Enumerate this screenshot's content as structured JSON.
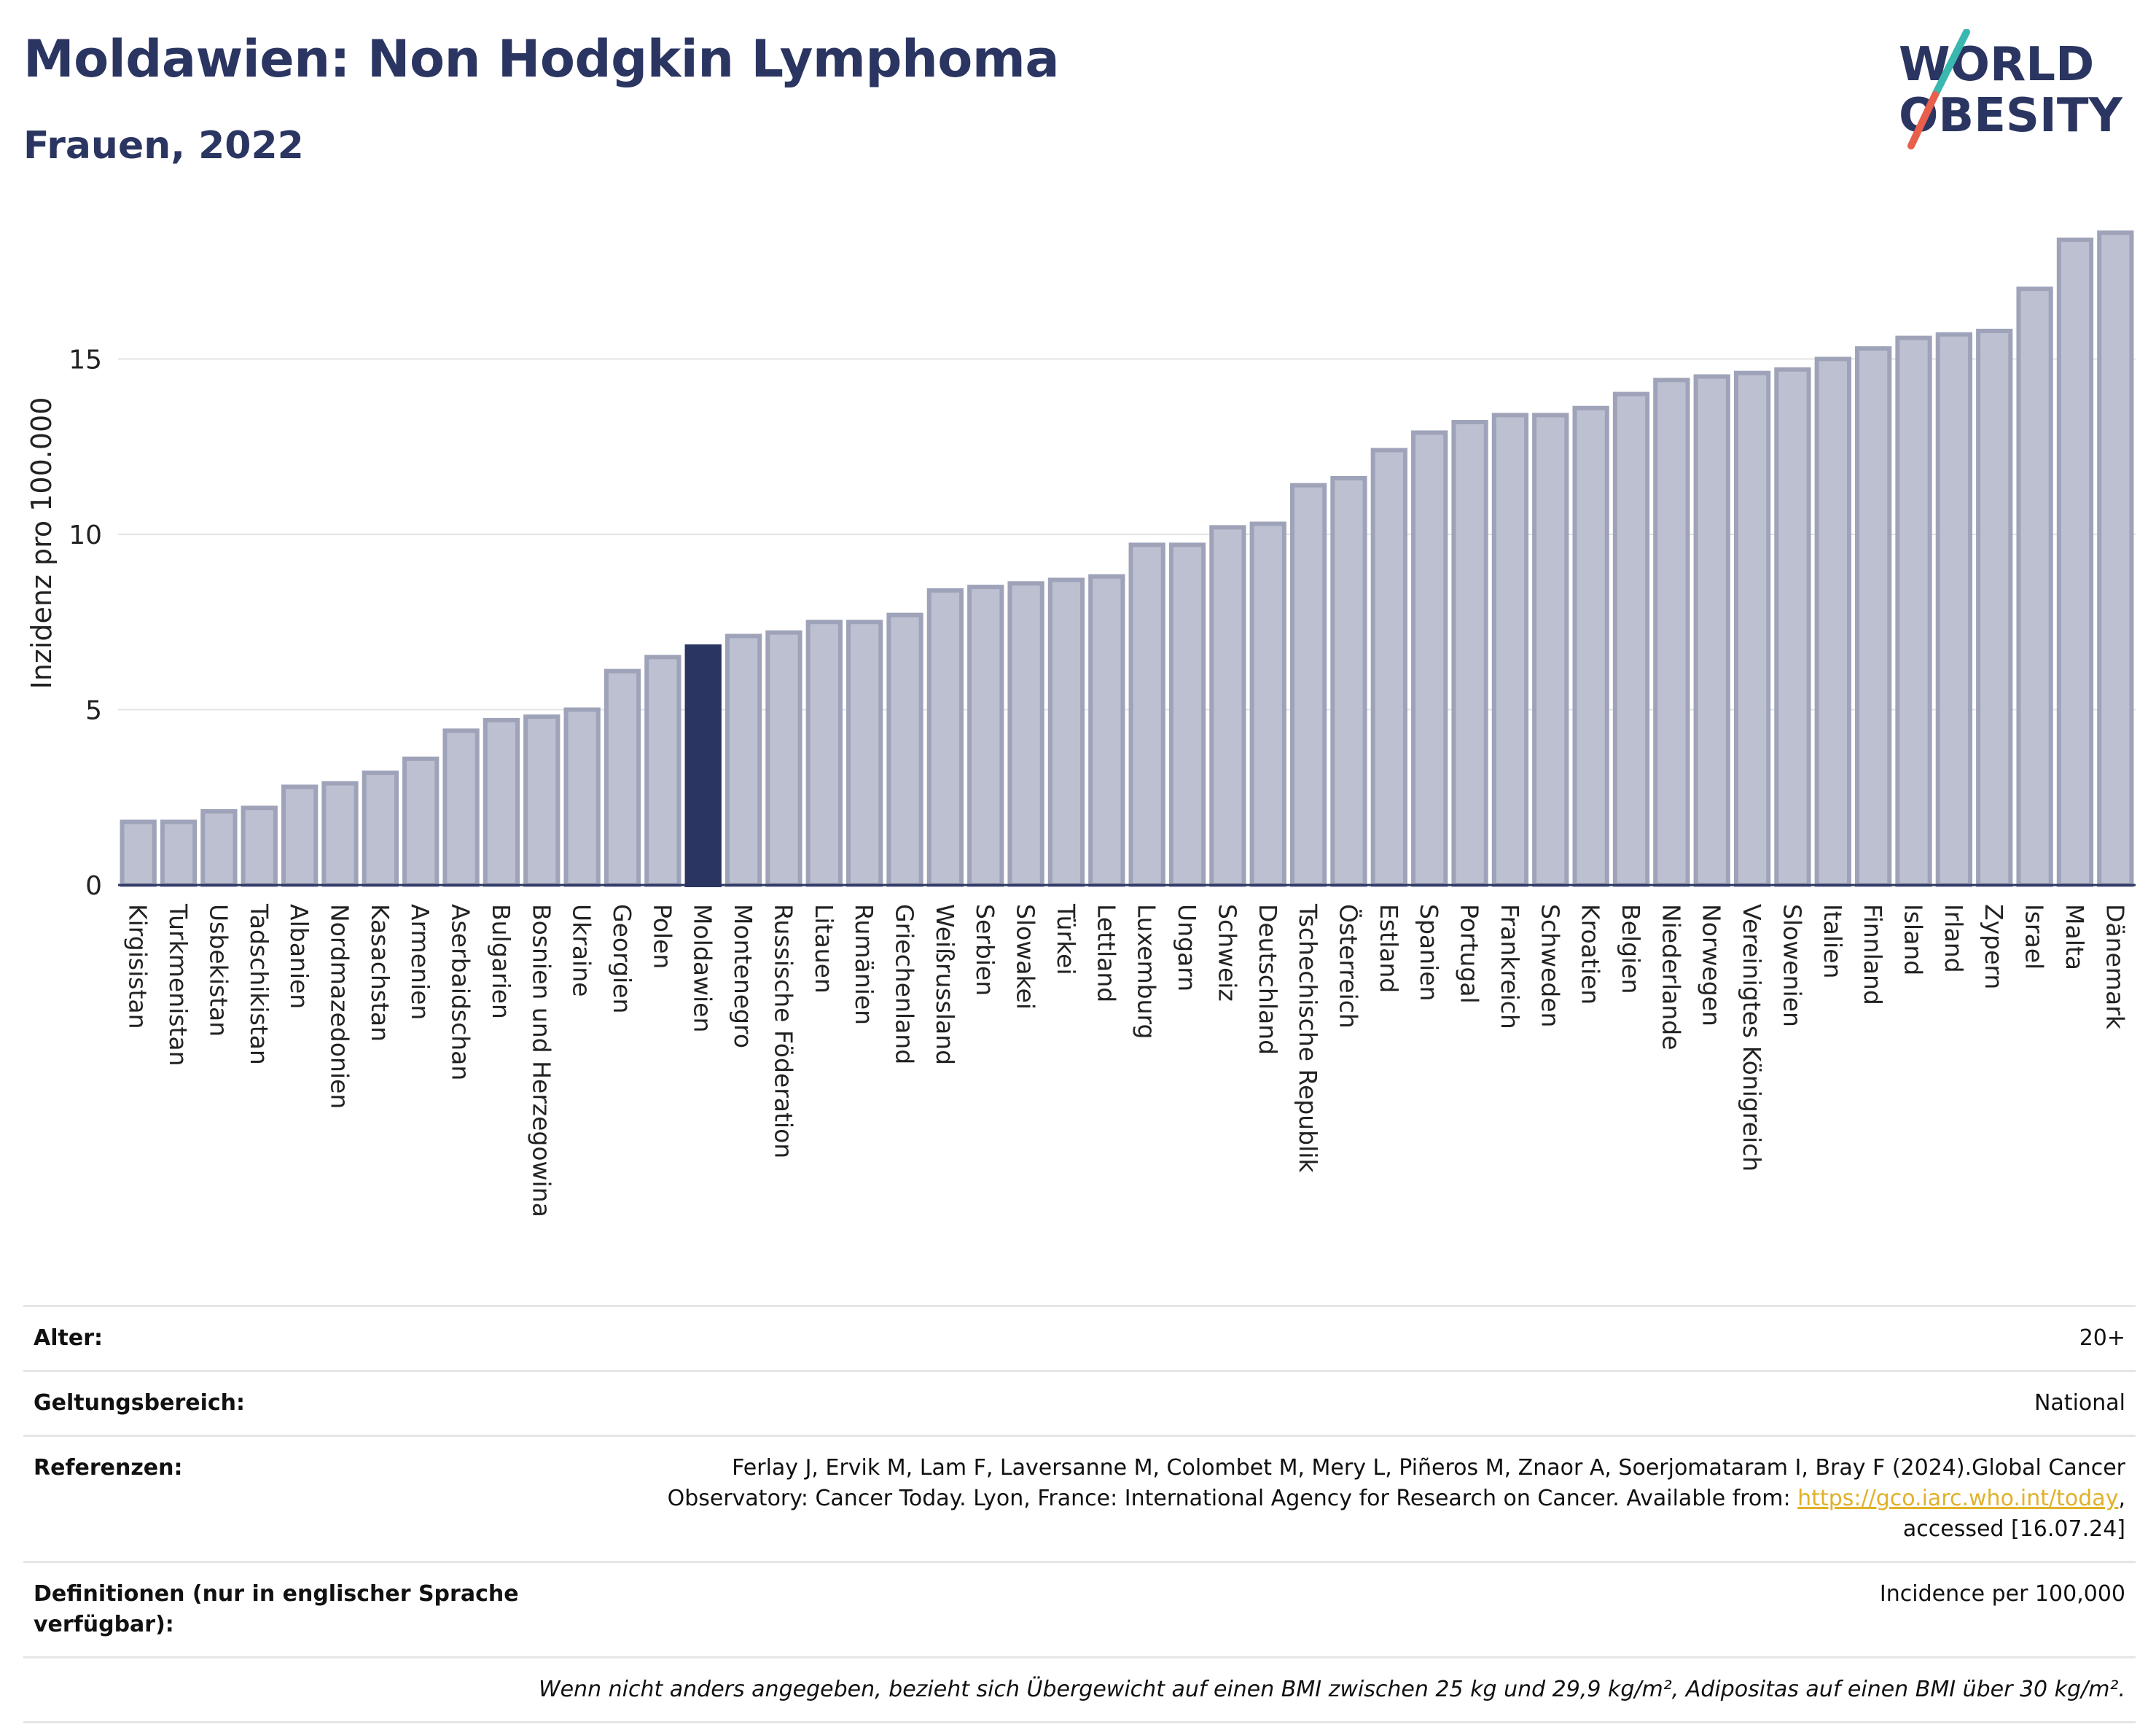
{
  "header": {
    "title": "Moldawien: Non Hodgkin Lymphoma",
    "subtitle": "Frauen, 2022",
    "logo_line1": "WORLD",
    "logo_line2": "OBESITY"
  },
  "colors": {
    "bar": "#bcc0d0",
    "bar_edge": "#9ea3b9",
    "highlight": "#2b3561",
    "title": "#2b3561",
    "logo_teal": "#3ab8b0",
    "logo_red": "#e8604c",
    "link": "#e0b12a"
  },
  "chart_data": {
    "type": "bar",
    "ylabel": "Inzidenz pro 100.000",
    "xlabel": "",
    "ylim": [
      0,
      19
    ],
    "yticks": [
      0,
      5,
      10,
      15
    ],
    "grid": true,
    "legend": "none",
    "highlight": "Moldawien",
    "categories": [
      "Kirgisistan",
      "Turkmenistan",
      "Usbekistan",
      "Tadschikistan",
      "Albanien",
      "Nordmazedonien",
      "Kasachstan",
      "Armenien",
      "Aserbaidschan",
      "Bulgarien",
      "Bosnien und Herzegowina",
      "Ukraine",
      "Georgien",
      "Polen",
      "Moldawien",
      "Montenegro",
      "Russische Föderation",
      "Litauen",
      "Rumänien",
      "Griechenland",
      "Weißrussland",
      "Serbien",
      "Slowakei",
      "Türkei",
      "Lettland",
      "Luxemburg",
      "Ungarn",
      "Schweiz",
      "Deutschland",
      "Tschechische Republik",
      "Österreich",
      "Estland",
      "Spanien",
      "Portugal",
      "Frankreich",
      "Schweden",
      "Kroatien",
      "Belgien",
      "Niederlande",
      "Norwegen",
      "Vereinigtes Königreich",
      "Slowenien",
      "Italien",
      "Finnland",
      "Island",
      "Irland",
      "Zypern",
      "Israel",
      "Malta",
      "Dänemark"
    ],
    "values": [
      1.8,
      1.8,
      2.1,
      2.2,
      2.8,
      2.9,
      3.2,
      3.6,
      4.4,
      4.7,
      4.8,
      5.0,
      6.1,
      6.5,
      6.8,
      7.1,
      7.2,
      7.5,
      7.5,
      7.7,
      8.4,
      8.5,
      8.6,
      8.7,
      8.8,
      9.7,
      9.7,
      10.2,
      10.3,
      11.4,
      11.6,
      12.4,
      12.9,
      13.2,
      13.4,
      13.4,
      13.6,
      14.0,
      14.4,
      14.5,
      14.6,
      14.7,
      15.0,
      15.3,
      15.6,
      15.7,
      15.8,
      17.0,
      18.4,
      18.6
    ]
  },
  "info": {
    "age_label": "Alter:",
    "age_value": "20+",
    "scope_label": "Geltungsbereich:",
    "scope_value": "National",
    "ref_label": "Referenzen:",
    "ref_text1": "Ferlay J, Ervik M, Lam F, Laversanne M, Colombet M, Mery L, Piñeros M, Znaor A, Soerjomataram I, Bray F (2024).Global Cancer",
    "ref_text2": "Observatory: Cancer Today. Lyon, France: International Agency for Research on Cancer. Available from: ",
    "ref_link": "https://gco.iarc.who.int/today",
    "ref_text3": ",",
    "ref_text4": "accessed [16.07.24]",
    "def_label": "Definitionen (nur in englischer Sprache verfügbar):",
    "def_value": "Incidence per 100,000",
    "note": "Wenn nicht anders angegeben, bezieht sich Übergewicht auf einen BMI zwischen 25 kg und 29,9 kg/m², Adipositas auf einen BMI über 30 kg/m²."
  }
}
